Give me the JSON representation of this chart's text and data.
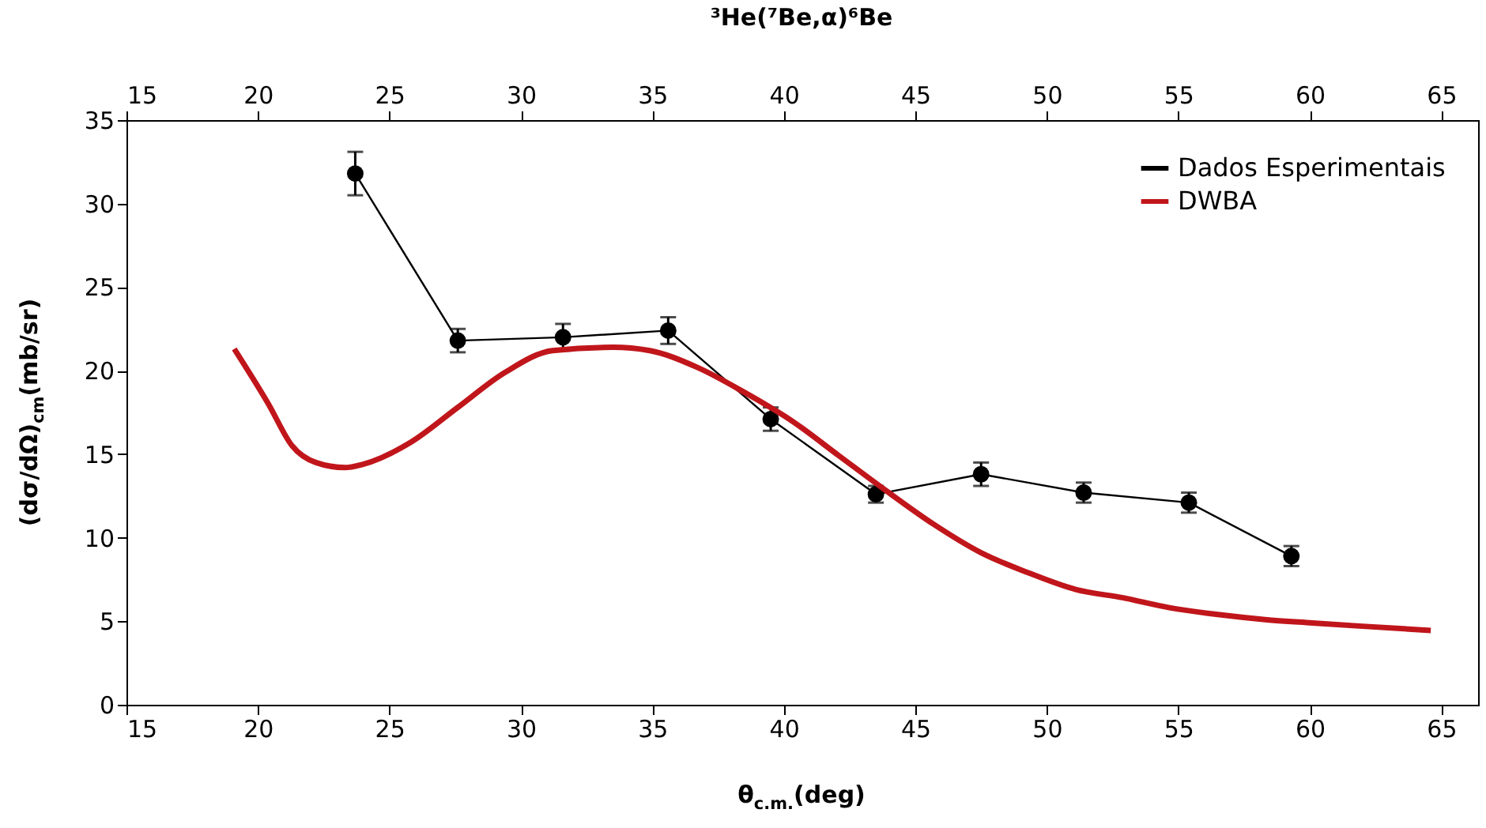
{
  "chart_data": {
    "type": "line",
    "xlabel": "θ$_{c.m.}$(deg)",
    "ylabel": "(dσ/dΩ)$_{cm}$(mb/sr)",
    "x2label": "³He(⁷Be,α)⁶Be",
    "xlim": [
      15,
      66.4
    ],
    "xticks": [
      15,
      20,
      25,
      30,
      35,
      40,
      45,
      50,
      55,
      60,
      65
    ],
    "x2lim": [
      15,
      66.4
    ],
    "x2ticks": [
      15,
      20,
      25,
      30,
      35,
      40,
      45,
      50,
      55,
      60,
      65
    ],
    "ylim": [
      0,
      35
    ],
    "yticks": [
      0,
      5,
      10,
      15,
      20,
      25,
      30,
      35
    ],
    "grid": false,
    "legend": "top right",
    "series": [
      {
        "name": "Dados Esperimentais",
        "color": "#000000",
        "marker": "circle",
        "line_style": "solid",
        "x": [
          23.7,
          27.6,
          31.6,
          35.6,
          39.5,
          43.5,
          47.5,
          51.4,
          55.4,
          59.3
        ],
        "values": [
          31.8,
          21.8,
          22.0,
          22.4,
          17.1,
          12.6,
          13.8,
          12.7,
          12.1,
          8.9
        ],
        "errors": [
          1.3,
          0.7,
          0.8,
          0.8,
          0.7,
          0.5,
          0.7,
          0.6,
          0.6,
          0.6
        ]
      },
      {
        "name": "DWBA",
        "color": "#c0161b",
        "type": "line",
        "marker": "none",
        "line_style": "solid",
        "x": [
          19.1,
          20.4,
          21.3,
          22.2,
          23.3,
          24.0,
          25.8,
          27.6,
          29.4,
          31.2,
          33.5,
          34.9,
          36.7,
          38.5,
          40.3,
          42.1,
          43.9,
          45.7,
          47.5,
          49.3,
          51.1,
          52.9,
          54.7,
          56.5,
          58.3,
          60.1,
          62.0,
          64.6
        ],
        "values": [
          21.3,
          18.0,
          15.5,
          14.5,
          14.2,
          14.4,
          15.7,
          17.8,
          19.9,
          21.2,
          21.4,
          21.2,
          20.2,
          18.7,
          17.0,
          14.9,
          12.8,
          10.8,
          9.1,
          7.9,
          6.9,
          6.4,
          5.8,
          5.4,
          5.1,
          4.9,
          4.7,
          4.45
        ]
      }
    ]
  }
}
